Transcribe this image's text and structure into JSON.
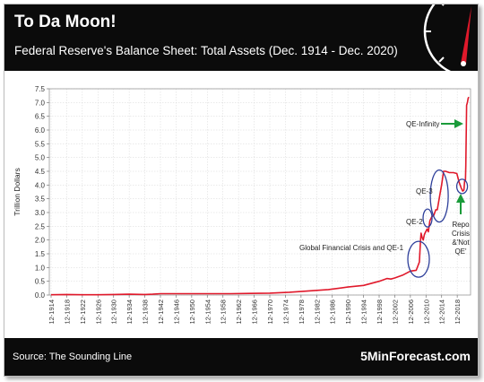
{
  "header": {
    "title": "To Da Moon!",
    "subtitle": "Federal Reserve's Balance Sheet: Total Assets (Dec. 1914 - Dec. 2020)"
  },
  "footer": {
    "source": "Source: The Sounding Line",
    "brand": "5MinForecast.com"
  },
  "colors": {
    "background_dark": "#0b0b0b",
    "line": "#e0192b",
    "annotation_circle": "#2e3f9a",
    "arrow": "#1a9b3a",
    "gauge_needle": "#e0192b"
  },
  "icons": {
    "gauge": "speedometer-gauge-icon"
  },
  "chart_data": {
    "type": "line",
    "ylabel": "Trillion Dollars",
    "xlabel": "",
    "ylim": [
      0,
      7.5
    ],
    "yticks": [
      "0.0",
      "0.5",
      "1.0",
      "1.5",
      "2.0",
      "2.5",
      "3.0",
      "3.5",
      "4.0",
      "4.5",
      "5.0",
      "5.5",
      "6.0",
      "6.5",
      "7.0",
      "7.5"
    ],
    "xticks": [
      "12-1914",
      "12-1918",
      "12-1922",
      "12-1926",
      "12-1930",
      "12-1934",
      "12-1938",
      "12-1942",
      "12-1946",
      "12-1950",
      "12-1954",
      "12-1958",
      "12-1962",
      "12-1966",
      "12-1970",
      "12-1974",
      "12-1978",
      "12-1982",
      "12-1986",
      "12-1990",
      "12-1994",
      "12-1998",
      "12-2002",
      "12-2006",
      "12-2010",
      "12-2014",
      "12-2018"
    ],
    "grid": true,
    "series": [
      {
        "x": [
          1914,
          1918,
          1922,
          1926,
          1930,
          1934,
          1938,
          1940,
          1942,
          1945,
          1950,
          1955,
          1960,
          1965,
          1970,
          1975,
          1980,
          1985,
          1990,
          1994,
          1998,
          2000,
          2001,
          2002,
          2004,
          2006,
          2007.5,
          2008.3,
          2008.6,
          2008.75,
          2009,
          2009.3,
          2009.6,
          2009.9,
          2010.3,
          2010.6,
          2011,
          2011.5,
          2012,
          2012.5,
          2012.9,
          2013.5,
          2014,
          2014.5,
          2015,
          2016,
          2017,
          2017.9,
          2018.5,
          2019,
          2019.4,
          2019.7,
          2019.9,
          2020.1,
          2020.2,
          2020.4,
          2020.6,
          2020.8,
          2020.95
        ],
        "y": [
          0.01,
          0.02,
          0.01,
          0.01,
          0.02,
          0.03,
          0.02,
          0.03,
          0.05,
          0.05,
          0.05,
          0.05,
          0.05,
          0.06,
          0.07,
          0.1,
          0.15,
          0.2,
          0.29,
          0.35,
          0.5,
          0.6,
          0.58,
          0.62,
          0.72,
          0.87,
          0.9,
          1.2,
          2.0,
          2.25,
          2.1,
          2.0,
          2.2,
          2.3,
          2.4,
          2.3,
          2.7,
          2.85,
          2.9,
          3.1,
          3.1,
          3.6,
          4.0,
          4.5,
          4.5,
          4.45,
          4.45,
          4.42,
          4.1,
          3.9,
          3.78,
          3.82,
          4.15,
          4.17,
          4.7,
          6.9,
          7.0,
          7.15,
          7.2
        ]
      }
    ],
    "annotations": [
      {
        "text": "Global Financial Crisis and QE-1",
        "x": 2008.5,
        "y": 1.8
      },
      {
        "text": "QE-2",
        "x": 2010.8,
        "y": 2.7
      },
      {
        "text": "QE-3",
        "x": 2013.8,
        "y": 3.95
      },
      {
        "text": "QE-Infinity",
        "x": 2020.5,
        "y": 6.2
      },
      {
        "text": "Repo\nCrisis\n&'Not\nQE'",
        "x": 2019.6,
        "y": 4.0
      }
    ]
  }
}
